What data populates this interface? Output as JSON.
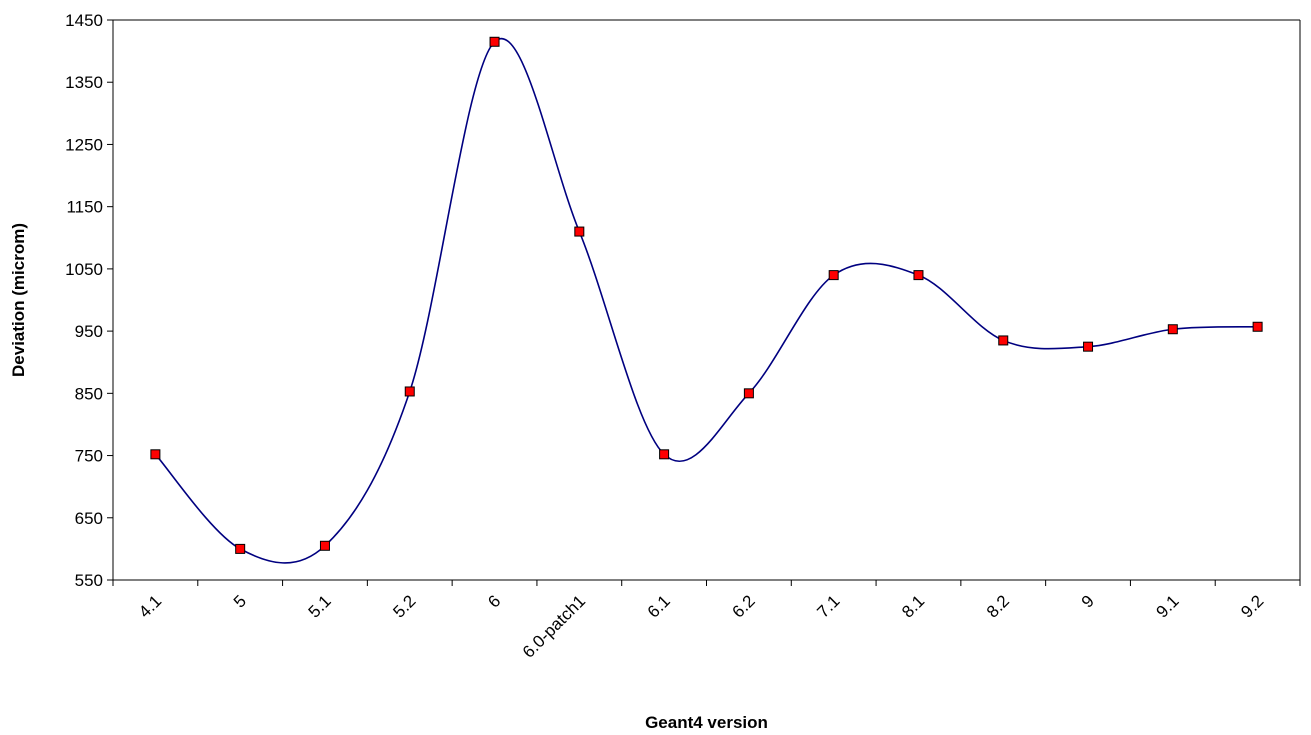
{
  "chart_data": {
    "type": "line",
    "title": "",
    "xlabel": "Geant4 version",
    "ylabel": "Deviation (microm)",
    "categories": [
      "4.1",
      "5",
      "5.1",
      "5.2",
      "6",
      "6.0-patch1",
      "6.1",
      "6.2",
      "7.1",
      "8.1",
      "8.2",
      "9",
      "9.1",
      "9.2"
    ],
    "series": [
      {
        "values": [
          752,
          600,
          605,
          853,
          1415,
          1110,
          752,
          850,
          1040,
          1040,
          935,
          925,
          953,
          957
        ],
        "line_color": "#000080",
        "marker_color": "#ff0000",
        "marker_edge": "#000000",
        "smooth": true
      }
    ],
    "ylim": [
      550,
      1450
    ],
    "yticks": [
      550,
      650,
      750,
      850,
      950,
      1050,
      1150,
      1250,
      1350,
      1450
    ],
    "grid": false,
    "legend": "none"
  }
}
